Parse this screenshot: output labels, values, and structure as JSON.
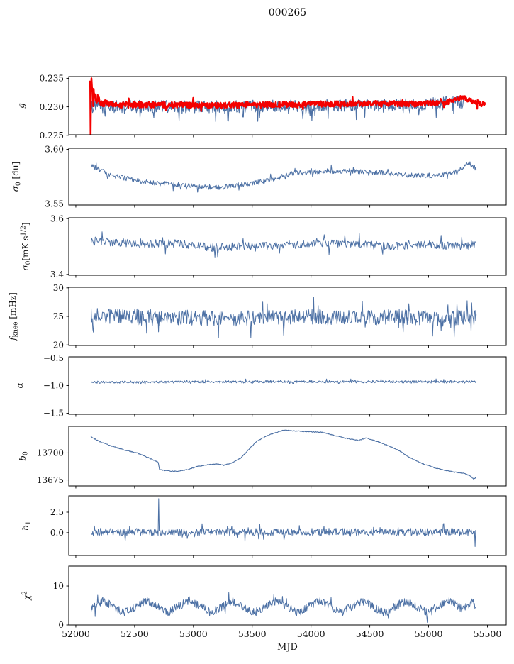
{
  "chart_data": {
    "type": "line",
    "title": "000265",
    "xlabel": "MJD",
    "colors": {
      "blue": "#4d71a5",
      "red": "#f40000",
      "axis": "#000000",
      "text": "#111111"
    },
    "x": {
      "lim": [
        51940,
        55660
      ],
      "ticks": [
        52000,
        52500,
        53000,
        53500,
        54000,
        54500,
        55000,
        55500
      ],
      "tick_labels": [
        "52000",
        "52500",
        "53000",
        "53500",
        "54000",
        "54500",
        "55000",
        "55500"
      ]
    },
    "panels": [
      {
        "id": "g",
        "ylabel_segments": [
          {
            "t": "g",
            "i": true
          }
        ],
        "ylim": [
          0.2251,
          0.2353
        ],
        "yticks": [
          {
            "v": 0.235,
            "l": "0.235"
          },
          {
            "v": 0.23,
            "l": "0.230"
          },
          {
            "v": 0.225,
            "l": "0.225"
          }
        ],
        "series": [
          {
            "name": "g-blue-line",
            "color": "blue",
            "lw": 1.1,
            "n": 620,
            "xrange": [
              52132,
              55300
            ],
            "amp": 0.0011,
            "tail": 0.08,
            "tail_down": true,
            "keys": [
              [
                52132,
                0.23
              ],
              [
                52600,
                0.2301
              ],
              [
                53100,
                0.23
              ],
              [
                53600,
                0.2302
              ],
              [
                54100,
                0.2303
              ],
              [
                54600,
                0.2303
              ],
              [
                55000,
                0.2305
              ],
              [
                55230,
                0.2309
              ],
              [
                55300,
                0.2306
              ]
            ]
          },
          {
            "name": "g-red-band",
            "color": "red",
            "lw": 2.5,
            "n": 900,
            "xrange": [
              52122,
              55480
            ],
            "amp": 0.00045,
            "tail": 0.03,
            "amp_keys": [
              [
                52122,
                0.0014
              ],
              [
                52240,
                0.00055
              ],
              [
                55480,
                0.00045
              ]
            ],
            "keys": [
              [
                52122,
                0.235
              ],
              [
                52135,
                0.2332
              ],
              [
                52150,
                0.2322
              ],
              [
                52180,
                0.2312
              ],
              [
                52230,
                0.2307
              ],
              [
                52320,
                0.2304
              ],
              [
                52800,
                0.2303
              ],
              [
                53200,
                0.2302
              ],
              [
                53600,
                0.2304
              ],
              [
                54100,
                0.2305
              ],
              [
                54600,
                0.2306
              ],
              [
                54900,
                0.2305
              ],
              [
                55150,
                0.2308
              ],
              [
                55290,
                0.2316
              ],
              [
                55360,
                0.2311
              ],
              [
                55480,
                0.2303
              ]
            ],
            "spikes": [
              [
                52126,
                0.2243
              ]
            ]
          }
        ]
      },
      {
        "id": "sigma0-du",
        "ylabel_segments": [
          {
            "t": "σ",
            "i": true
          },
          {
            "t": "0",
            "sub": true
          },
          {
            "t": " [du]"
          }
        ],
        "ylim": [
          3.549,
          3.601
        ],
        "yticks": [
          {
            "v": 3.6,
            "l": "3.60"
          },
          {
            "v": 3.55,
            "l": "3.55"
          }
        ],
        "series": [
          {
            "name": "sigma0-du-line",
            "color": "blue",
            "lw": 1.0,
            "n": 680,
            "xrange": [
              52130,
              55405
            ],
            "amp": 0.0023,
            "tail": 0.05,
            "keys": [
              [
                52130,
                3.585
              ],
              [
                52300,
                3.576
              ],
              [
                52600,
                3.57
              ],
              [
                52900,
                3.567
              ],
              [
                53200,
                3.565
              ],
              [
                53450,
                3.568
              ],
              [
                53650,
                3.572
              ],
              [
                53850,
                3.578
              ],
              [
                54100,
                3.58
              ],
              [
                54400,
                3.58
              ],
              [
                54650,
                3.578
              ],
              [
                54900,
                3.576
              ],
              [
                55100,
                3.576
              ],
              [
                55250,
                3.58
              ],
              [
                55340,
                3.588
              ],
              [
                55405,
                3.582
              ]
            ]
          }
        ]
      },
      {
        "id": "sigma0-mks",
        "ylabel_segments": [
          {
            "t": "σ",
            "i": true
          },
          {
            "t": "0",
            "sub": true
          },
          {
            "t": "[mK s"
          },
          {
            "t": "1/2",
            "sup": true
          },
          {
            "t": "]"
          }
        ],
        "ylim": [
          3.397,
          3.603
        ],
        "yticks": [
          {
            "v": 3.6,
            "l": "3.6"
          },
          {
            "v": 3.4,
            "l": "3.4"
          }
        ],
        "series": [
          {
            "name": "sigma0-mks-line",
            "color": "blue",
            "lw": 1.0,
            "n": 560,
            "xrange": [
              52130,
              55405
            ],
            "amp": 0.015,
            "tail": 0.04,
            "keys": [
              [
                52130,
                3.52
              ],
              [
                52350,
                3.515
              ],
              [
                52600,
                3.51
              ],
              [
                52900,
                3.51
              ],
              [
                53150,
                3.495
              ],
              [
                53400,
                3.5
              ],
              [
                53700,
                3.505
              ],
              [
                54000,
                3.51
              ],
              [
                54400,
                3.508
              ],
              [
                54700,
                3.5
              ],
              [
                55000,
                3.508
              ],
              [
                55200,
                3.5
              ],
              [
                55405,
                3.51
              ]
            ]
          }
        ]
      },
      {
        "id": "fknee",
        "ylabel_segments": [
          {
            "t": "f",
            "i": true
          },
          {
            "t": "knee",
            "sub": true
          },
          {
            "t": " [mHz]"
          }
        ],
        "ylim": [
          19.9,
          30.1
        ],
        "yticks": [
          {
            "v": 30,
            "l": "30"
          },
          {
            "v": 25,
            "l": "25"
          },
          {
            "v": 20,
            "l": "20"
          }
        ],
        "series": [
          {
            "name": "fknee-line",
            "color": "blue",
            "lw": 1.0,
            "n": 680,
            "xrange": [
              52130,
              55405
            ],
            "amp": 1.35,
            "tail": 0.06,
            "keys": [
              [
                52130,
                25.2
              ],
              [
                52400,
                25.0
              ],
              [
                52700,
                24.6
              ],
              [
                53000,
                24.8
              ],
              [
                53300,
                24.5
              ],
              [
                53600,
                24.8
              ],
              [
                54000,
                25.0
              ],
              [
                54400,
                24.8
              ],
              [
                54800,
                24.9
              ],
              [
                55100,
                24.6
              ],
              [
                55405,
                24.8
              ]
            ]
          }
        ]
      },
      {
        "id": "alpha",
        "ylabel_segments": [
          {
            "t": "α",
            "i": true
          }
        ],
        "ylim": [
          -1.52,
          -0.48
        ],
        "yticks": [
          {
            "v": -0.5,
            "l": "−0.5"
          },
          {
            "v": -1.0,
            "l": "−1.0"
          },
          {
            "v": -1.5,
            "l": "−1.5"
          }
        ],
        "series": [
          {
            "name": "alpha-line",
            "color": "blue",
            "lw": 1.0,
            "n": 700,
            "xrange": [
              52130,
              55405
            ],
            "amp": 0.022,
            "tail": 0.05,
            "keys": [
              [
                52130,
                -0.94
              ],
              [
                53000,
                -0.935
              ],
              [
                54000,
                -0.93
              ],
              [
                55405,
                -0.935
              ]
            ]
          }
        ]
      },
      {
        "id": "b0",
        "ylabel_segments": [
          {
            "t": "b",
            "i": true
          },
          {
            "t": "0",
            "sub": true
          }
        ],
        "ylim": [
          13669.5,
          13724.5
        ],
        "yticks": [
          {
            "v": 13700,
            "l": "13700"
          },
          {
            "v": 13675,
            "l": "13675"
          }
        ],
        "series": [
          {
            "name": "b0-line",
            "color": "blue",
            "lw": 1.1,
            "n": 820,
            "xrange": [
              52128,
              55402
            ],
            "amp": 0.35,
            "keys": [
              [
                52128,
                13715
              ],
              [
                52200,
                13710.5
              ],
              [
                52300,
                13706.5
              ],
              [
                52420,
                13702.5
              ],
              [
                52520,
                13700
              ],
              [
                52620,
                13695.5
              ],
              [
                52700,
                13691.5
              ],
              [
                52712,
                13684.5
              ],
              [
                52800,
                13683.2
              ],
              [
                52860,
                13683
              ],
              [
                52950,
                13684.5
              ],
              [
                53030,
                13687.5
              ],
              [
                53120,
                13689
              ],
              [
                53210,
                13690
              ],
              [
                53255,
                13688.5
              ],
              [
                53310,
                13690
              ],
              [
                53400,
                13695
              ],
              [
                53540,
                13711
              ],
              [
                53650,
                13717
              ],
              [
                53770,
                13721
              ],
              [
                53900,
                13720
              ],
              [
                54100,
                13719
              ],
              [
                54200,
                13716
              ],
              [
                54300,
                13713.5
              ],
              [
                54400,
                13711.5
              ],
              [
                54470,
                13713.8
              ],
              [
                54550,
                13711
              ],
              [
                54650,
                13707
              ],
              [
                54750,
                13702
              ],
              [
                54850,
                13695
              ],
              [
                54940,
                13690.5
              ],
              [
                55060,
                13686
              ],
              [
                55180,
                13683
              ],
              [
                55300,
                13681
              ],
              [
                55350,
                13679
              ],
              [
                55385,
                13675.8
              ],
              [
                55402,
                13677.3
              ]
            ]
          }
        ]
      },
      {
        "id": "b1",
        "ylabel_segments": [
          {
            "t": "b",
            "i": true
          },
          {
            "t": "1",
            "sub": true
          }
        ],
        "ylim": [
          -2.78,
          4.49
        ],
        "yticks": [
          {
            "v": 2.5,
            "l": "2.5"
          },
          {
            "v": 0.0,
            "l": "0.0"
          }
        ],
        "series": [
          {
            "name": "b1-line",
            "color": "blue",
            "lw": 1.0,
            "n": 700,
            "xrange": [
              52130,
              55400
            ],
            "amp": 0.45,
            "tail": 0.06,
            "keys": [
              [
                52130,
                0.1
              ],
              [
                53000,
                0.05
              ],
              [
                54000,
                0.1
              ],
              [
                55400,
                0.05
              ]
            ],
            "spikes": [
              [
                52705,
                4.15
              ],
              [
                55396,
                -1.7
              ]
            ]
          }
        ]
      },
      {
        "id": "chi2",
        "ylabel_segments": [
          {
            "t": "χ",
            "i": true
          },
          {
            "t": "2",
            "sup": true
          }
        ],
        "ylim": [
          0,
          15.1
        ],
        "yticks": [
          {
            "v": 10,
            "l": "10"
          },
          {
            "v": 0,
            "l": "0"
          }
        ],
        "series": [
          {
            "name": "chi2-line",
            "color": "blue",
            "lw": 1.0,
            "n": 760,
            "xrange": [
              52130,
              55402
            ],
            "amp": 1.05,
            "tail": 0.04,
            "keys": [
              [
                52130,
                4.2
              ],
              [
                52230,
                6.2
              ],
              [
                52414,
                3.1
              ],
              [
                52598,
                6.2
              ],
              [
                52782,
                3.2
              ],
              [
                52966,
                6.3
              ],
              [
                53150,
                3.1
              ],
              [
                53334,
                6.2
              ],
              [
                53518,
                3.2
              ],
              [
                53702,
                6.2
              ],
              [
                53886,
                3.1
              ],
              [
                54070,
                6.3
              ],
              [
                54254,
                3.2
              ],
              [
                54438,
                6.2
              ],
              [
                54622,
                3.1
              ],
              [
                54806,
                6.2
              ],
              [
                54990,
                3.2
              ],
              [
                55174,
                6.3
              ],
              [
                55300,
                4.0
              ],
              [
                55360,
                6.0
              ],
              [
                55402,
                5.0
              ]
            ]
          }
        ]
      }
    ]
  }
}
